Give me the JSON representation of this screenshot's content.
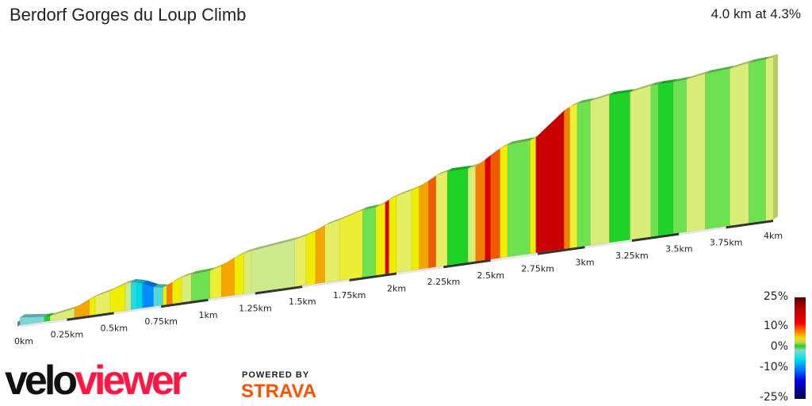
{
  "header": {
    "title": "Berdorf Gorges du Loup Climb",
    "summary": "4.0 km at 4.3%"
  },
  "branding": {
    "velo": "velo",
    "viewer": "viewer",
    "powered_by": "POWERED BY",
    "strava": "STRAVA"
  },
  "legend": {
    "labels": [
      "25%",
      "10%",
      "0%",
      "-10%",
      "-25%"
    ]
  },
  "chart_data": {
    "type": "area",
    "title": "Berdorf Gorges du Loup Climb",
    "xlabel": "",
    "ylabel": "",
    "xlim": [
      0,
      4
    ],
    "x_tick_labels": [
      "0km",
      "0.25km",
      "0.5km",
      "0.75km",
      "1km",
      "1.25km",
      "1.5km",
      "1.75km",
      "2km",
      "2.25km",
      "2.5km",
      "2.75km",
      "3km",
      "3.25km",
      "3.5km",
      "3.75km",
      "4km"
    ],
    "color_scale": "gradient %",
    "color_range": [
      -25,
      25
    ],
    "segments": [
      [
        0,
        0.13,
        -2
      ],
      [
        0.13,
        0.16,
        0
      ],
      [
        0.16,
        0.29,
        3
      ],
      [
        0.29,
        0.37,
        8
      ],
      [
        0.37,
        0.4,
        6
      ],
      [
        0.4,
        0.48,
        4
      ],
      [
        0.48,
        0.56,
        6
      ],
      [
        0.56,
        0.59,
        2
      ],
      [
        0.59,
        0.62,
        -4
      ],
      [
        0.62,
        0.65,
        -5
      ],
      [
        0.65,
        0.71,
        -8
      ],
      [
        0.71,
        0.76,
        -3
      ],
      [
        0.76,
        0.78,
        6
      ],
      [
        0.78,
        0.81,
        9
      ],
      [
        0.81,
        0.86,
        6
      ],
      [
        0.86,
        0.91,
        3
      ],
      [
        0.91,
        1.01,
        1
      ],
      [
        1.01,
        1.07,
        5
      ],
      [
        1.07,
        1.14,
        8
      ],
      [
        1.14,
        1.19,
        6
      ],
      [
        1.19,
        1.23,
        3
      ],
      [
        1.23,
        1.46,
        2
      ],
      [
        1.46,
        1.52,
        4
      ],
      [
        1.52,
        1.57,
        6
      ],
      [
        1.57,
        1.62,
        8
      ],
      [
        1.62,
        1.7,
        4
      ],
      [
        1.7,
        1.82,
        5
      ],
      [
        1.82,
        1.89,
        1
      ],
      [
        1.89,
        1.94,
        6
      ],
      [
        1.94,
        1.96,
        12
      ],
      [
        1.96,
        2.0,
        6
      ],
      [
        2.0,
        2.08,
        4
      ],
      [
        2.08,
        2.12,
        6
      ],
      [
        2.12,
        2.17,
        8
      ],
      [
        2.17,
        2.21,
        10
      ],
      [
        2.21,
        2.27,
        4
      ],
      [
        2.27,
        2.38,
        0
      ],
      [
        2.38,
        2.42,
        3
      ],
      [
        2.42,
        2.47,
        9
      ],
      [
        2.47,
        2.5,
        12
      ],
      [
        2.5,
        2.55,
        10
      ],
      [
        2.55,
        2.59,
        6
      ],
      [
        2.59,
        2.71,
        1
      ],
      [
        2.71,
        2.74,
        6
      ],
      [
        2.74,
        2.89,
        14
      ],
      [
        2.89,
        2.92,
        9
      ],
      [
        2.92,
        2.96,
        5
      ],
      [
        2.96,
        3.03,
        1
      ],
      [
        3.03,
        3.13,
        3
      ],
      [
        3.13,
        3.24,
        0
      ],
      [
        3.24,
        3.35,
        3
      ],
      [
        3.35,
        3.39,
        1
      ],
      [
        3.39,
        3.47,
        0
      ],
      [
        3.47,
        3.54,
        1
      ],
      [
        3.54,
        3.64,
        3
      ],
      [
        3.64,
        3.77,
        1
      ],
      [
        3.77,
        3.87,
        3
      ],
      [
        3.87,
        3.96,
        1
      ],
      [
        3.96,
        4.0,
        3
      ]
    ]
  }
}
